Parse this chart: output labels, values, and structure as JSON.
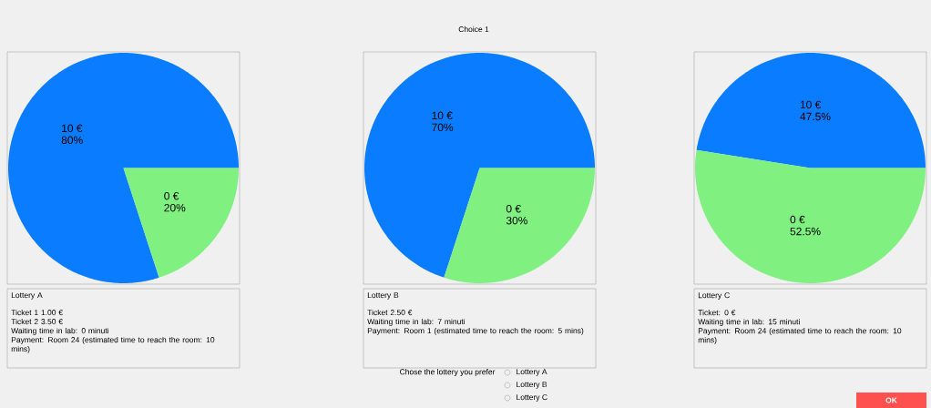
{
  "chart_data": [
    {
      "type": "pie",
      "categories": [
        "10 €",
        "0 €"
      ],
      "values": [
        80,
        20
      ],
      "value_labels": [
        "80%",
        "20%"
      ],
      "colors": [
        "#0a7cff",
        "#80f080"
      ],
      "annotations": [
        "Lottery A",
        "Ticket 1 1.00 €",
        "Ticket 2 3.50 €",
        "Waiting time in lab: 0 minuti",
        "Payment: Room 24 (estimated time to reach the room: 10 mins)"
      ]
    },
    {
      "type": "pie",
      "categories": [
        "10 €",
        "0 €"
      ],
      "values": [
        70,
        30
      ],
      "value_labels": [
        "70%",
        "30%"
      ],
      "colors": [
        "#0a7cff",
        "#80f080"
      ],
      "annotations": [
        "Lottery B",
        "Ticket  2.50 €",
        "Waiting time in lab: 7 minuti",
        "Payment: Room 1 (estimated time to reach the room: 5 mins)"
      ]
    },
    {
      "type": "pie",
      "categories": [
        "10 €",
        "0 €"
      ],
      "values": [
        47.5,
        52.5
      ],
      "value_labels": [
        "47.5%",
        "52.5%"
      ],
      "colors": [
        "#0a7cff",
        "#80f080"
      ],
      "annotations": [
        "Lottery C",
        "Ticket: 0 €",
        "Waiting time in lab: 15 minuti",
        "Payment: Room 24 (estimated time to reach the room: 10 mins)"
      ]
    },
    {
      "type": "other",
      "title": "Choice 1",
      "annotations": [
        "Chose the lottery you prefer",
        "Lottery A",
        "Lottery B",
        "Lottery C",
        "OK"
      ]
    }
  ]
}
